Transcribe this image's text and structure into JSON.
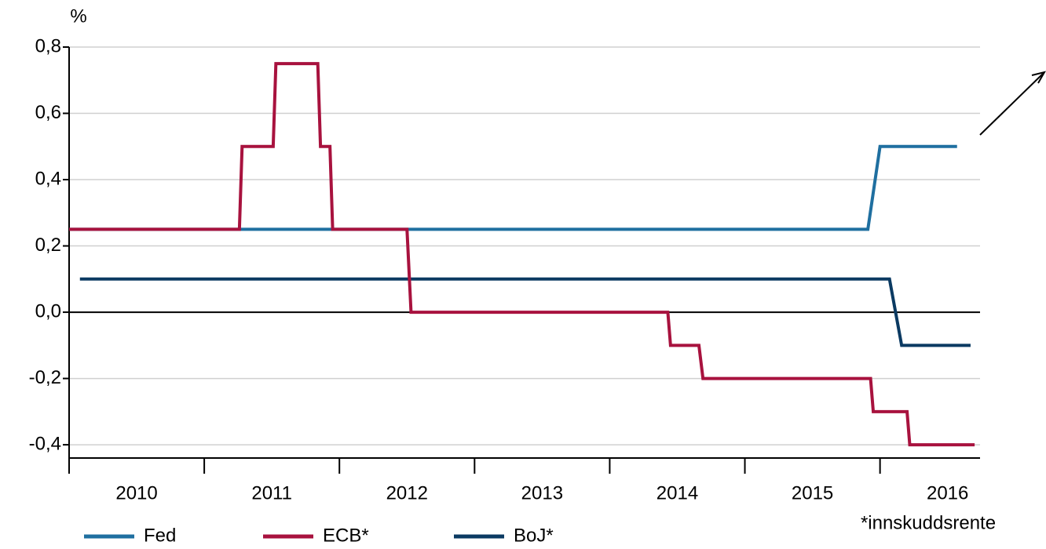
{
  "chart_data": {
    "type": "line",
    "y_label": "%",
    "footnote": "*innskuddsrente",
    "xlim": [
      2010,
      2016.74
    ],
    "xticks": [
      2010,
      2011,
      2012,
      2013,
      2014,
      2015,
      2016
    ],
    "ylim": [
      -0.44,
      0.8
    ],
    "yticks": [
      {
        "value": 0.8,
        "label": "0,8"
      },
      {
        "value": 0.6,
        "label": "0,6"
      },
      {
        "value": 0.4,
        "label": "0,4"
      },
      {
        "value": 0.2,
        "label": "0,2"
      },
      {
        "value": 0,
        "label": "0,0"
      },
      {
        "value": -0.2,
        "label": "-0,2"
      },
      {
        "value": -0.4,
        "label": "-0,4"
      }
    ],
    "grid": true,
    "series": [
      {
        "name": "Fed",
        "color": "#1f6fa0",
        "x": [
          2010,
          2015.91,
          2016.0,
          2016.57
        ],
        "values": [
          0.25,
          0.25,
          0.5,
          0.5
        ]
      },
      {
        "name": "ECB*",
        "color": "#a8123e",
        "x": [
          2010,
          2011.26,
          2011.28,
          2011.51,
          2011.53,
          2011.84,
          2011.86,
          2011.93,
          2011.95,
          2012.5,
          2012.53,
          2014.43,
          2014.45,
          2014.66,
          2014.69,
          2015.93,
          2015.95,
          2016.2,
          2016.22,
          2016.7
        ],
        "values": [
          0.25,
          0.25,
          0.5,
          0.5,
          0.75,
          0.75,
          0.5,
          0.5,
          0.25,
          0.25,
          0,
          0,
          -0.1,
          -0.1,
          -0.2,
          -0.2,
          -0.3,
          -0.3,
          -0.4,
          -0.4
        ]
      },
      {
        "name": "BoJ*",
        "color": "#0b3a62",
        "x": [
          2010.08,
          2016.07,
          2016.16,
          2016.67
        ],
        "values": [
          0.1,
          0.1,
          -0.1,
          -0.1
        ]
      }
    ]
  }
}
